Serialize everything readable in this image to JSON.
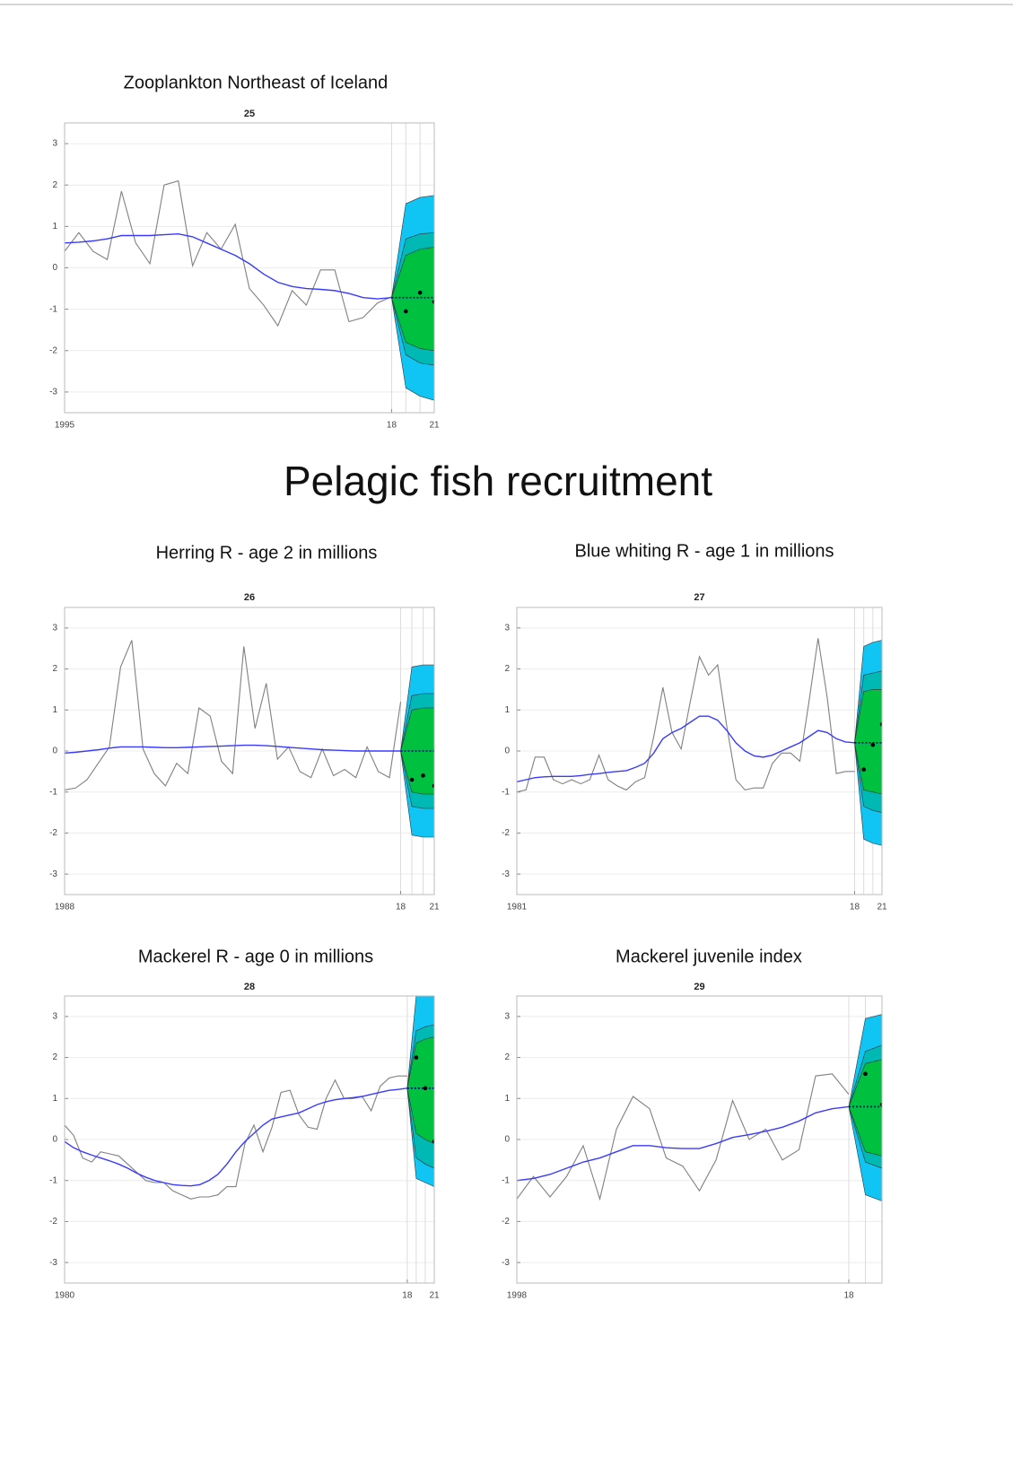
{
  "heading": "Pelagic fish recruitment",
  "chart_data": [
    {
      "type": "line",
      "title": "Zooplankton Northeast of Iceland",
      "subtitle": "25",
      "xlim": [
        1995,
        2021
      ],
      "xticks": [
        1995,
        {
          "value": 2018,
          "label": "18"
        },
        {
          "value": 2021,
          "label": "21"
        }
      ],
      "ylim": [
        -3.5,
        3.5
      ],
      "yticks": [
        -3,
        -2,
        -1,
        0,
        1,
        2,
        3
      ],
      "grid": true,
      "x": [
        1995,
        1996,
        1997,
        1998,
        1999,
        2000,
        2001,
        2002,
        2003,
        2004,
        2005,
        2006,
        2007,
        2008,
        2009,
        2010,
        2011,
        2012,
        2013,
        2014,
        2015,
        2016,
        2017,
        2018
      ],
      "series": [
        {
          "color": "#808080",
          "values": [
            0.4,
            0.85,
            0.4,
            0.2,
            1.85,
            0.6,
            0.1,
            2.0,
            2.1,
            0.05,
            0.85,
            0.45,
            1.05,
            -0.5,
            -0.9,
            -1.4,
            -0.55,
            -0.9,
            -0.05,
            -0.05,
            -1.3,
            -1.2,
            -0.85,
            -0.7
          ]
        },
        {
          "color": "#3a3aff",
          "values": [
            0.6,
            0.62,
            0.65,
            0.7,
            0.78,
            0.78,
            0.78,
            0.8,
            0.82,
            0.75,
            0.6,
            0.45,
            0.3,
            0.1,
            -0.15,
            -0.35,
            -0.45,
            -0.5,
            -0.52,
            -0.55,
            -0.62,
            -0.72,
            -0.75,
            -0.72
          ]
        }
      ],
      "forecast": {
        "x": [
          2018,
          2019,
          2020,
          2021
        ],
        "median": [
          -0.72,
          -0.72,
          -0.72,
          -0.72
        ],
        "median_color": "#00008b",
        "bands": [
          {
            "color": "#10c4f4",
            "lower": [
              -0.72,
              -2.9,
              -3.1,
              -3.2
            ],
            "upper": [
              -0.72,
              1.55,
              1.7,
              1.75
            ]
          },
          {
            "color": "#00b8b4",
            "lower": [
              -0.72,
              -2.1,
              -2.3,
              -2.35
            ],
            "upper": [
              -0.72,
              0.7,
              0.82,
              0.85
            ]
          },
          {
            "color": "#00c040",
            "lower": [
              -0.72,
              -1.8,
              -1.95,
              -2.0
            ],
            "upper": [
              -0.72,
              0.3,
              0.45,
              0.5
            ]
          }
        ],
        "points": [
          null,
          -1.05,
          -0.6,
          -0.82
        ],
        "point_color": "#000000"
      }
    },
    {
      "type": "line",
      "title": "Herring R - age 2 in millions",
      "subtitle": "26",
      "xlim": [
        1988,
        2021
      ],
      "xticks": [
        1988,
        {
          "value": 2018,
          "label": "18"
        },
        {
          "value": 2021,
          "label": "21"
        }
      ],
      "ylim": [
        -3.5,
        3.5
      ],
      "yticks": [
        -3,
        -2,
        -1,
        0,
        1,
        2,
        3
      ],
      "grid": true,
      "x": [
        1988,
        1989,
        1990,
        1991,
        1992,
        1993,
        1994,
        1995,
        1996,
        1997,
        1998,
        1999,
        2000,
        2001,
        2002,
        2003,
        2004,
        2005,
        2006,
        2007,
        2008,
        2009,
        2010,
        2011,
        2012,
        2013,
        2014,
        2015,
        2016,
        2017,
        2018
      ],
      "series": [
        {
          "color": "#808080",
          "values": [
            -0.95,
            -0.9,
            -0.7,
            -0.3,
            0.1,
            2.05,
            2.7,
            0.05,
            -0.55,
            -0.85,
            -0.3,
            -0.55,
            1.05,
            0.85,
            -0.25,
            -0.55,
            2.55,
            0.55,
            1.65,
            -0.2,
            0.1,
            -0.5,
            -0.65,
            0.05,
            -0.6,
            -0.45,
            -0.65,
            0.1,
            -0.5,
            -0.65,
            1.2
          ]
        },
        {
          "color": "#3a3aff",
          "values": [
            -0.05,
            -0.03,
            0.0,
            0.03,
            0.07,
            0.1,
            0.1,
            0.1,
            0.09,
            0.08,
            0.08,
            0.09,
            0.1,
            0.11,
            0.12,
            0.13,
            0.14,
            0.14,
            0.13,
            0.11,
            0.09,
            0.07,
            0.05,
            0.03,
            0.02,
            0.01,
            0.0,
            0.0,
            0.0,
            0.0,
            0.0
          ]
        }
      ],
      "forecast": {
        "x": [
          2018,
          2019,
          2020,
          2021
        ],
        "median": [
          0,
          0,
          0,
          0
        ],
        "median_color": "#00008b",
        "bands": [
          {
            "color": "#10c4f4",
            "lower": [
              0,
              -2.05,
              -2.1,
              -2.1
            ],
            "upper": [
              0,
              2.05,
              2.1,
              2.1
            ]
          },
          {
            "color": "#00b8b4",
            "lower": [
              0,
              -1.35,
              -1.4,
              -1.4
            ],
            "upper": [
              0,
              1.35,
              1.4,
              1.4
            ]
          },
          {
            "color": "#00c040",
            "lower": [
              0,
              -1.0,
              -1.05,
              -1.05
            ],
            "upper": [
              0,
              1.0,
              1.05,
              1.05
            ]
          }
        ],
        "points": [
          null,
          -0.7,
          -0.6,
          -0.85
        ],
        "point_color": "#000000"
      }
    },
    {
      "type": "line",
      "title": "Blue whiting R - age 1 in millions",
      "subtitle": "27",
      "xlim": [
        1981,
        2021
      ],
      "xticks": [
        1981,
        {
          "value": 2018,
          "label": "18"
        },
        {
          "value": 2021,
          "label": "21"
        }
      ],
      "ylim": [
        -3.5,
        3.5
      ],
      "yticks": [
        -3,
        -2,
        -1,
        0,
        1,
        2,
        3
      ],
      "grid": true,
      "x": [
        1981,
        1982,
        1983,
        1984,
        1985,
        1986,
        1987,
        1988,
        1989,
        1990,
        1991,
        1992,
        1993,
        1994,
        1995,
        1996,
        1997,
        1998,
        1999,
        2000,
        2001,
        2002,
        2003,
        2004,
        2005,
        2006,
        2007,
        2008,
        2009,
        2010,
        2011,
        2012,
        2013,
        2014,
        2015,
        2016,
        2017,
        2018
      ],
      "series": [
        {
          "color": "#808080",
          "values": [
            -1.0,
            -0.95,
            -0.15,
            -0.15,
            -0.7,
            -0.8,
            -0.7,
            -0.8,
            -0.7,
            -0.1,
            -0.7,
            -0.85,
            -0.95,
            -0.75,
            -0.65,
            0.35,
            1.55,
            0.45,
            0.05,
            1.2,
            2.3,
            1.85,
            2.1,
            0.6,
            -0.7,
            -0.95,
            -0.9,
            -0.9,
            -0.3,
            -0.05,
            -0.05,
            -0.25,
            1.2,
            2.75,
            1.3,
            -0.55,
            -0.5,
            -0.5
          ]
        },
        {
          "color": "#3a3aff",
          "values": [
            -0.75,
            -0.7,
            -0.65,
            -0.63,
            -0.62,
            -0.62,
            -0.62,
            -0.6,
            -0.57,
            -0.55,
            -0.52,
            -0.5,
            -0.48,
            -0.4,
            -0.3,
            -0.05,
            0.3,
            0.45,
            0.55,
            0.7,
            0.85,
            0.85,
            0.75,
            0.5,
            0.2,
            0.0,
            -0.12,
            -0.15,
            -0.1,
            0.0,
            0.1,
            0.2,
            0.35,
            0.5,
            0.45,
            0.3,
            0.22,
            0.2
          ]
        }
      ],
      "forecast": {
        "x": [
          2018,
          2019,
          2020,
          2021
        ],
        "median": [
          0.2,
          0.2,
          0.2,
          0.2
        ],
        "median_color": "#00008b",
        "bands": [
          {
            "color": "#10c4f4",
            "lower": [
              0.2,
              -2.15,
              -2.25,
              -2.3
            ],
            "upper": [
              0.2,
              2.55,
              2.65,
              2.7
            ]
          },
          {
            "color": "#00b8b4",
            "lower": [
              0.2,
              -1.35,
              -1.45,
              -1.5
            ],
            "upper": [
              0.2,
              1.85,
              1.9,
              1.95
            ]
          },
          {
            "color": "#00c040",
            "lower": [
              0.2,
              -0.95,
              -1.0,
              -1.05
            ],
            "upper": [
              0.2,
              1.45,
              1.5,
              1.5
            ]
          }
        ],
        "points": [
          null,
          -0.45,
          0.15,
          0.65
        ],
        "point_color": "#000000"
      }
    },
    {
      "type": "line",
      "title": "Mackerel R - age 0 in millions",
      "subtitle": "28",
      "xlim": [
        1980,
        2021
      ],
      "xticks": [
        1980,
        {
          "value": 2018,
          "label": "18"
        },
        {
          "value": 2021,
          "label": "21"
        }
      ],
      "ylim": [
        -3.5,
        3.5
      ],
      "yticks": [
        -3,
        -2,
        -1,
        0,
        1,
        2,
        3
      ],
      "grid": true,
      "x": [
        1980,
        1981,
        1982,
        1983,
        1984,
        1985,
        1986,
        1987,
        1988,
        1989,
        1990,
        1991,
        1992,
        1993,
        1994,
        1995,
        1996,
        1997,
        1998,
        1999,
        2000,
        2001,
        2002,
        2003,
        2004,
        2005,
        2006,
        2007,
        2008,
        2009,
        2010,
        2011,
        2012,
        2013,
        2014,
        2015,
        2016,
        2017,
        2018
      ],
      "series": [
        {
          "color": "#808080",
          "values": [
            0.35,
            0.1,
            -0.45,
            -0.55,
            -0.3,
            -0.35,
            -0.4,
            -0.6,
            -0.8,
            -1.0,
            -1.05,
            -1.05,
            -1.25,
            -1.35,
            -1.45,
            -1.4,
            -1.4,
            -1.35,
            -1.15,
            -1.15,
            -0.1,
            0.35,
            -0.3,
            0.3,
            1.15,
            1.2,
            0.6,
            0.3,
            0.25,
            1.0,
            1.45,
            1.0,
            1.0,
            1.05,
            0.7,
            1.3,
            1.5,
            1.55,
            1.55
          ]
        },
        {
          "color": "#3a3aff",
          "values": [
            -0.05,
            -0.2,
            -0.3,
            -0.38,
            -0.45,
            -0.52,
            -0.6,
            -0.7,
            -0.82,
            -0.92,
            -1.0,
            -1.05,
            -1.1,
            -1.12,
            -1.13,
            -1.1,
            -1.0,
            -0.85,
            -0.6,
            -0.3,
            -0.05,
            0.15,
            0.35,
            0.5,
            0.55,
            0.6,
            0.65,
            0.75,
            0.85,
            0.92,
            0.97,
            1.0,
            1.02,
            1.05,
            1.1,
            1.15,
            1.2,
            1.22,
            1.25
          ]
        }
      ],
      "forecast": {
        "x": [
          2018,
          2019,
          2020,
          2021
        ],
        "median": [
          1.25,
          1.25,
          1.25,
          1.25
        ],
        "median_color": "#00008b",
        "bands": [
          {
            "color": "#10c4f4",
            "lower": [
              1.25,
              -0.95,
              -1.05,
              -1.15
            ],
            "upper": [
              1.25,
              3.5,
              3.7,
              3.9
            ]
          },
          {
            "color": "#00b8b4",
            "lower": [
              1.25,
              -0.45,
              -0.6,
              -0.7
            ],
            "upper": [
              1.25,
              2.65,
              2.75,
              2.8
            ]
          },
          {
            "color": "#00c040",
            "lower": [
              1.25,
              0.15,
              0.0,
              -0.1
            ],
            "upper": [
              1.25,
              2.35,
              2.45,
              2.5
            ]
          }
        ],
        "points": [
          null,
          2.0,
          1.25,
          -0.05
        ],
        "point_color": "#000000"
      }
    },
    {
      "type": "line",
      "title": "Mackerel juvenile index",
      "subtitle": "29",
      "xlim": [
        1998,
        2020
      ],
      "xticks": [
        1998,
        {
          "value": 2018,
          "label": "18"
        }
      ],
      "ylim": [
        -3.5,
        3.5
      ],
      "yticks": [
        -3,
        -2,
        -1,
        0,
        1,
        2,
        3
      ],
      "grid": true,
      "x": [
        1998,
        1999,
        2000,
        2001,
        2002,
        2003,
        2004,
        2005,
        2006,
        2007,
        2008,
        2009,
        2010,
        2011,
        2012,
        2013,
        2014,
        2015,
        2016,
        2017,
        2018
      ],
      "series": [
        {
          "color": "#808080",
          "values": [
            -1.45,
            -0.9,
            -1.4,
            -0.9,
            -0.15,
            -1.45,
            0.25,
            1.05,
            0.75,
            -0.45,
            -0.65,
            -1.25,
            -0.5,
            0.95,
            0.0,
            0.25,
            -0.5,
            -0.25,
            1.55,
            1.6,
            1.1
          ]
        },
        {
          "color": "#3a3aff",
          "values": [
            -1.0,
            -0.95,
            -0.85,
            -0.7,
            -0.55,
            -0.45,
            -0.3,
            -0.15,
            -0.15,
            -0.2,
            -0.22,
            -0.22,
            -0.1,
            0.05,
            0.12,
            0.2,
            0.3,
            0.45,
            0.65,
            0.75,
            0.8
          ]
        }
      ],
      "forecast": {
        "x": [
          2018,
          2019,
          2020
        ],
        "median": [
          0.8,
          0.8,
          0.8
        ],
        "median_color": "#00008b",
        "bands": [
          {
            "color": "#10c4f4",
            "lower": [
              0.8,
              -1.35,
              -1.5
            ],
            "upper": [
              0.8,
              2.95,
              3.05
            ]
          },
          {
            "color": "#00b8b4",
            "lower": [
              0.8,
              -0.55,
              -0.7
            ],
            "upper": [
              0.8,
              2.15,
              2.3
            ]
          },
          {
            "color": "#00c040",
            "lower": [
              0.8,
              -0.3,
              -0.4
            ],
            "upper": [
              0.8,
              1.85,
              1.95
            ]
          }
        ],
        "points": [
          null,
          1.6,
          0.85
        ],
        "point_color": "#000000"
      }
    }
  ]
}
